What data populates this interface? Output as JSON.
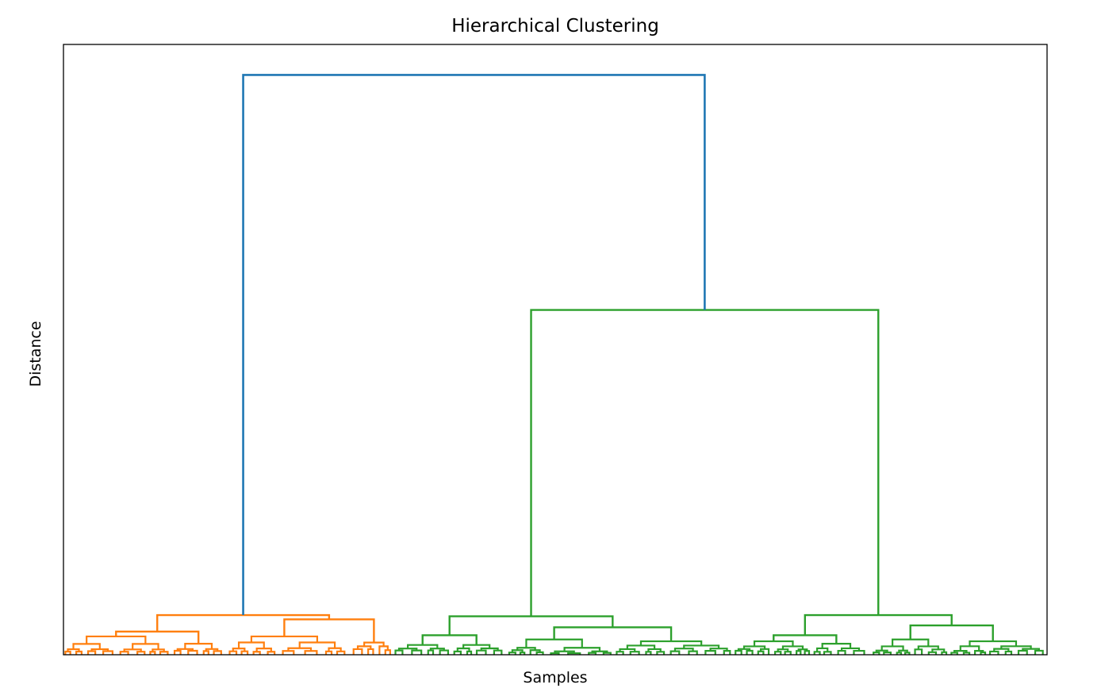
{
  "chart_data": {
    "type": "dendrogram",
    "title": "Hierarchical Clustering",
    "xlabel": "Samples",
    "ylabel": "Distance",
    "x_ticks": "none",
    "y_ticks": "none",
    "grid": false,
    "legend": "none",
    "colors": {
      "root_link": "#1f77b4",
      "cluster_1": "#ff7f0e",
      "cluster_2": "#2ca02c",
      "frame": "#000000"
    },
    "clusters": [
      {
        "name": "",
        "color": "#ff7f0e",
        "leaf_range": [
          0,
          0.335
        ],
        "merge_height": 0.065
      },
      {
        "name": "",
        "color": "#2ca02c",
        "leaf_range": [
          0.335,
          1.0
        ],
        "merge_height": 0.565,
        "sub_clusters": [
          {
            "leaf_range": [
              0.335,
              0.68
            ],
            "merge_height": 0.063
          },
          {
            "leaf_range": [
              0.68,
              1.0
            ],
            "merge_height": 0.065
          }
        ]
      }
    ],
    "root_merge_height": 0.95
  }
}
